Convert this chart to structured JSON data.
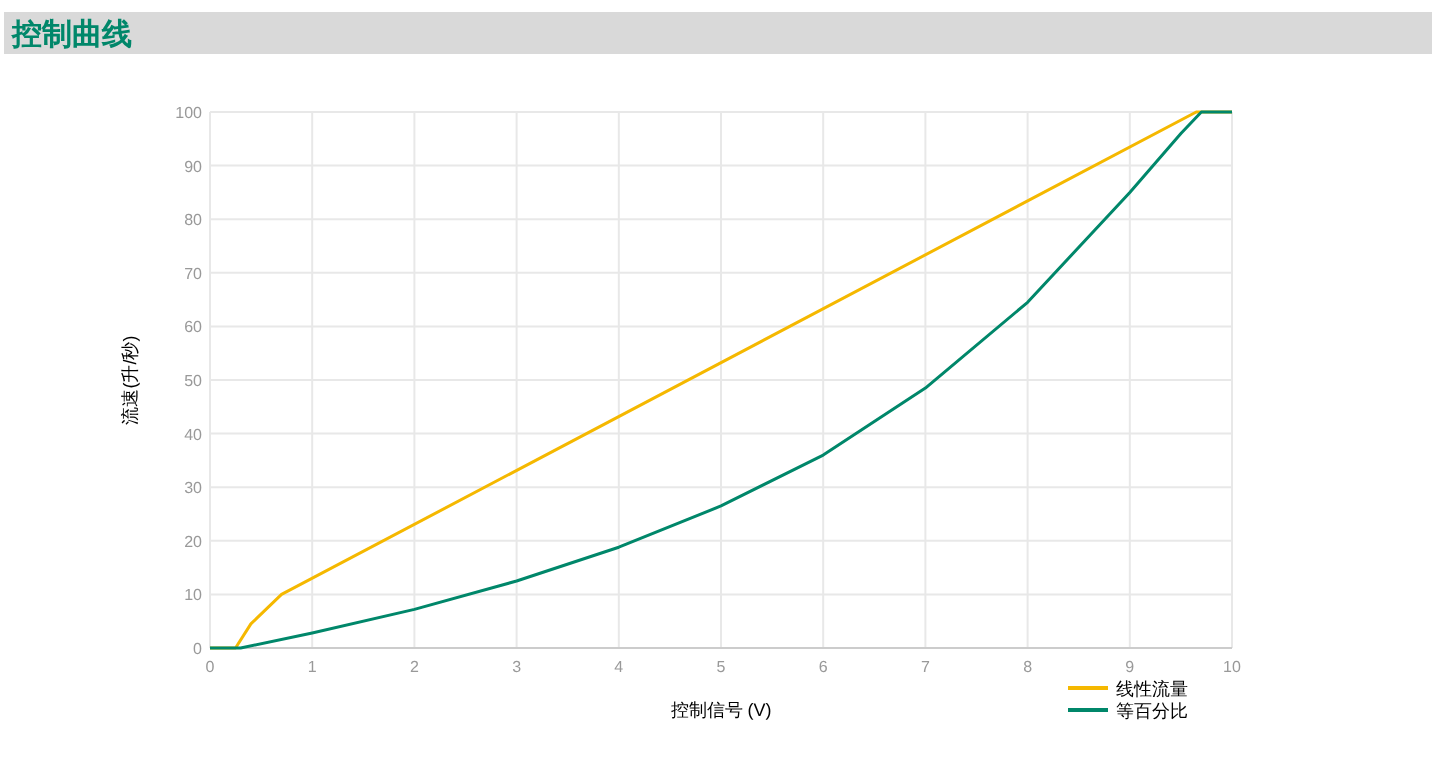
{
  "chart_data": {
    "type": "line",
    "title": "控制曲线",
    "xlabel": "控制信号 (V)",
    "ylabel": "流速(升/秒)",
    "xlim": [
      0,
      10
    ],
    "xticks": [
      0,
      1,
      2,
      3,
      4,
      5,
      6,
      7,
      8,
      9,
      10
    ],
    "ylim": [
      0,
      100
    ],
    "yticks": [
      0,
      10,
      20,
      30,
      40,
      50,
      60,
      70,
      80,
      90,
      100
    ],
    "grid": true,
    "legend": "bottom right",
    "line_style": "solid",
    "series": [
      {
        "name": "线性流量",
        "color": "#f5b800",
        "x": [
          0,
          0.25,
          0.4,
          0.7,
          9.65,
          10
        ],
        "values": [
          0,
          0,
          4.5,
          10,
          100,
          100
        ]
      },
      {
        "name": "等百分比",
        "color": "#00876a",
        "x": [
          0,
          0.3,
          1,
          2,
          3,
          4,
          5,
          6,
          7,
          8,
          9,
          9.5,
          9.7,
          10
        ],
        "values": [
          0,
          0,
          2.8,
          7.2,
          12.5,
          18.8,
          26.5,
          36,
          48.5,
          64.5,
          85,
          96,
          100,
          100
        ]
      }
    ]
  }
}
